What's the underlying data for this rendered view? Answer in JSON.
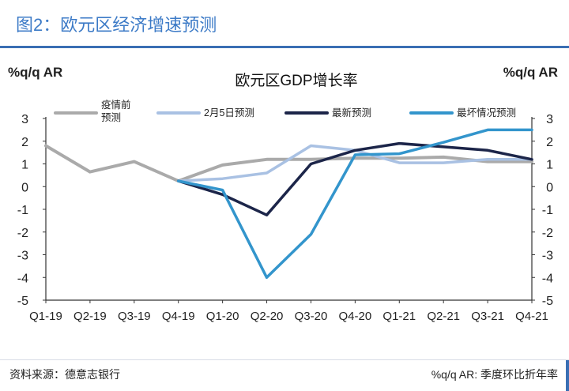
{
  "figure": {
    "title": "图2：欧元区经济增速预测",
    "source": "资料来源：德意志银行",
    "note": "%q/q AR: 季度环比折年率"
  },
  "chart_data": {
    "type": "line",
    "title": "欧元区GDP增长率",
    "y_unit_left": "%q/q AR",
    "y_unit_right": "%q/q AR",
    "categories": [
      "Q1-19",
      "Q2-19",
      "Q3-19",
      "Q4-19",
      "Q1-20",
      "Q2-20",
      "Q3-20",
      "Q4-20",
      "Q1-21",
      "Q2-21",
      "Q3-21",
      "Q4-21"
    ],
    "ylim": [
      -5,
      3
    ],
    "yticks": [
      3,
      2,
      1,
      0,
      -1,
      -2,
      -3,
      -4,
      -5
    ],
    "grid": false,
    "legend_position": "top",
    "series": [
      {
        "name": "疫情前预测",
        "color": "#aaaaaa",
        "values": [
          1.8,
          0.65,
          1.1,
          0.25,
          0.95,
          1.2,
          1.2,
          1.25,
          1.25,
          1.3,
          1.1,
          1.1
        ]
      },
      {
        "name": "2月5日预测",
        "color": "#a9c1e3",
        "values": [
          null,
          null,
          null,
          0.25,
          0.35,
          0.6,
          1.8,
          1.6,
          1.05,
          1.05,
          1.2,
          1.2
        ]
      },
      {
        "name": "最新预测",
        "color": "#1c2549",
        "values": [
          null,
          null,
          null,
          0.25,
          -0.35,
          -1.25,
          1.0,
          1.6,
          1.9,
          1.75,
          1.6,
          1.2
        ]
      },
      {
        "name": "最坏情况预测",
        "color": "#3395cc",
        "values": [
          null,
          null,
          null,
          0.25,
          -0.15,
          -4.0,
          -2.1,
          1.4,
          1.45,
          1.95,
          2.5,
          2.5
        ]
      }
    ]
  }
}
